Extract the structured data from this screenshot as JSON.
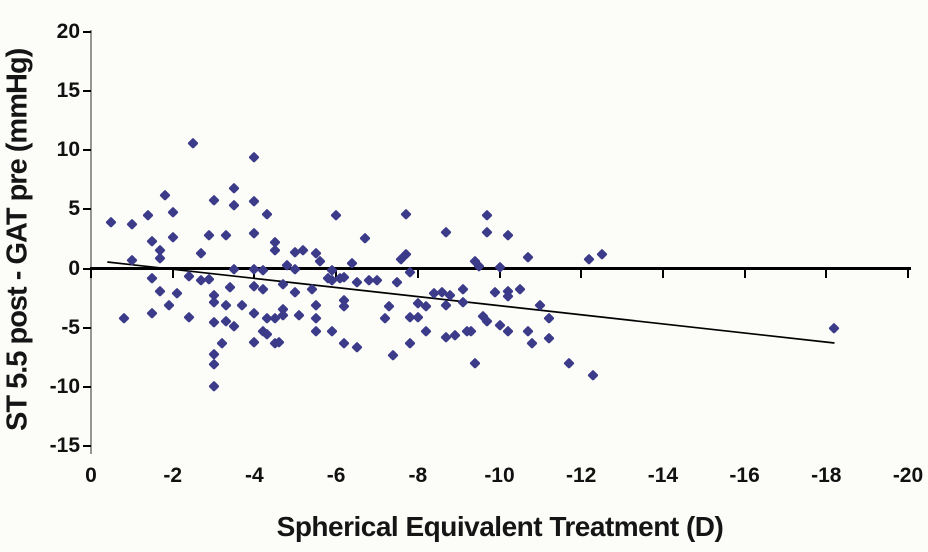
{
  "figure": {
    "background_color": "#fcfcf9",
    "marker_color": "#3b3b8a",
    "axis_line_color": "#969696",
    "zero_line_color": "#000000",
    "text_color": "#151515"
  },
  "chart_data": {
    "type": "scatter",
    "title": "",
    "xlabel": "Spherical Equivalent Treatment (D)",
    "ylabel": "ST 5.5 post - GAT pre (mmHg)",
    "x_axis_reversed": true,
    "xlim": [
      0,
      -20
    ],
    "ylim": [
      20,
      -15
    ],
    "x_ticks": [
      0,
      -2,
      -4,
      -6,
      -8,
      -10,
      -12,
      -14,
      -16,
      -18,
      -20
    ],
    "y_ticks": [
      20,
      15,
      10,
      5,
      0,
      -5,
      -10,
      -15
    ],
    "grid": false,
    "legend_position": "none",
    "marker_shape": "diamond",
    "trendline": {
      "x1": -0.4,
      "y1": 0.55,
      "x2": -18.2,
      "y2": -6.3
    },
    "points": [
      [
        -2.5,
        10.6
      ],
      [
        -4.0,
        9.4
      ],
      [
        -3.5,
        6.8
      ],
      [
        -1.8,
        6.2
      ],
      [
        -3.0,
        5.8
      ],
      [
        -4.0,
        5.7
      ],
      [
        -3.5,
        5.4
      ],
      [
        -2.0,
        4.8
      ],
      [
        -4.3,
        4.6
      ],
      [
        -1.4,
        4.5
      ],
      [
        -0.5,
        3.9
      ],
      [
        -1.0,
        3.8
      ],
      [
        -2.0,
        2.7
      ],
      [
        -2.9,
        2.8
      ],
      [
        -3.3,
        2.8
      ],
      [
        -4.0,
        3.0
      ],
      [
        -1.5,
        2.3
      ],
      [
        -4.5,
        2.2
      ],
      [
        -4.5,
        1.6
      ],
      [
        -1.7,
        1.6
      ],
      [
        -2.7,
        1.3
      ],
      [
        -1.7,
        0.9
      ],
      [
        -1.0,
        0.7
      ],
      [
        -3.5,
        0.0
      ],
      [
        -4.0,
        0.0
      ],
      [
        -4.2,
        -0.1
      ],
      [
        -1.5,
        -0.8
      ],
      [
        -2.4,
        -0.6
      ],
      [
        -2.7,
        -1.0
      ],
      [
        -2.9,
        -0.9
      ],
      [
        -3.4,
        -1.6
      ],
      [
        -4.0,
        -1.5
      ],
      [
        -4.2,
        -1.7
      ],
      [
        -1.7,
        -1.9
      ],
      [
        -2.1,
        -2.1
      ],
      [
        -3.0,
        -2.2
      ],
      [
        -3.0,
        -2.8
      ],
      [
        -3.3,
        -3.1
      ],
      [
        -3.7,
        -3.1
      ],
      [
        -1.9,
        -3.1
      ],
      [
        -1.5,
        -3.8
      ],
      [
        -0.8,
        -4.2
      ],
      [
        -2.4,
        -4.1
      ],
      [
        -4.0,
        -3.8
      ],
      [
        -4.3,
        -4.2
      ],
      [
        -4.5,
        -4.2
      ],
      [
        -4.7,
        -3.9
      ],
      [
        -3.0,
        -4.5
      ],
      [
        -3.3,
        -4.4
      ],
      [
        -3.5,
        -4.9
      ],
      [
        -4.2,
        -5.3
      ],
      [
        -3.2,
        -6.3
      ],
      [
        -4.0,
        -6.2
      ],
      [
        -4.5,
        -6.3
      ],
      [
        -4.6,
        -6.2
      ],
      [
        -3.0,
        -7.2
      ],
      [
        -3.0,
        -8.1
      ],
      [
        -3.0,
        -9.9
      ],
      [
        -4.3,
        -5.5
      ],
      [
        -6.0,
        4.5
      ],
      [
        -7.7,
        4.6
      ],
      [
        -6.7,
        2.6
      ],
      [
        -8.7,
        3.1
      ],
      [
        -5.0,
        1.4
      ],
      [
        -5.2,
        1.6
      ],
      [
        -5.5,
        1.3
      ],
      [
        -5.6,
        0.6
      ],
      [
        -4.8,
        0.3
      ],
      [
        -6.4,
        0.5
      ],
      [
        -7.6,
        0.8
      ],
      [
        -7.7,
        1.2
      ],
      [
        -9.4,
        0.6
      ],
      [
        -5.0,
        0.0
      ],
      [
        -5.9,
        -0.1
      ],
      [
        -7.8,
        -0.3
      ],
      [
        -5.8,
        -0.8
      ],
      [
        -5.9,
        -1.0
      ],
      [
        -6.1,
        -0.8
      ],
      [
        -6.2,
        -0.7
      ],
      [
        -6.5,
        -1.1
      ],
      [
        -6.8,
        -1.0
      ],
      [
        -7.0,
        -1.0
      ],
      [
        -7.5,
        -1.1
      ],
      [
        -4.7,
        -1.3
      ],
      [
        -5.0,
        -2.0
      ],
      [
        -5.4,
        -1.7
      ],
      [
        -8.4,
        -2.1
      ],
      [
        -8.6,
        -2.0
      ],
      [
        -8.8,
        -2.2
      ],
      [
        -9.1,
        -1.7
      ],
      [
        -6.2,
        -2.7
      ],
      [
        -6.2,
        -3.2
      ],
      [
        -5.5,
        -3.1
      ],
      [
        -7.3,
        -3.2
      ],
      [
        -8.0,
        -2.9
      ],
      [
        -8.2,
        -3.2
      ],
      [
        -8.7,
        -3.1
      ],
      [
        -9.1,
        -2.8
      ],
      [
        -4.7,
        -3.4
      ],
      [
        -5.1,
        -3.9
      ],
      [
        -5.5,
        -4.2
      ],
      [
        -7.2,
        -4.2
      ],
      [
        -7.8,
        -4.1
      ],
      [
        -8.0,
        -4.1
      ],
      [
        -5.5,
        -5.3
      ],
      [
        -5.9,
        -5.3
      ],
      [
        -8.2,
        -5.3
      ],
      [
        -8.7,
        -5.8
      ],
      [
        -8.9,
        -5.6
      ],
      [
        -9.2,
        -5.3
      ],
      [
        -6.2,
        -6.3
      ],
      [
        -6.5,
        -6.6
      ],
      [
        -7.8,
        -6.3
      ],
      [
        -7.4,
        -7.3
      ],
      [
        -9.4,
        -8.0
      ],
      [
        -9.7,
        4.5
      ],
      [
        -9.7,
        3.1
      ],
      [
        -10.2,
        2.8
      ],
      [
        -10.7,
        1.0
      ],
      [
        -9.5,
        0.2
      ],
      [
        -10.0,
        0.1
      ],
      [
        -12.2,
        0.8
      ],
      [
        -12.5,
        1.2
      ],
      [
        -9.9,
        -2.0
      ],
      [
        -10.2,
        -1.9
      ],
      [
        -10.2,
        -2.3
      ],
      [
        -10.5,
        -1.7
      ],
      [
        -11.0,
        -3.1
      ],
      [
        -9.6,
        -4.0
      ],
      [
        -9.7,
        -4.4
      ],
      [
        -10.0,
        -4.8
      ],
      [
        -10.2,
        -5.3
      ],
      [
        -11.2,
        -4.2
      ],
      [
        -10.7,
        -5.3
      ],
      [
        -10.8,
        -6.3
      ],
      [
        -11.2,
        -5.9
      ],
      [
        -9.3,
        -5.3
      ],
      [
        -11.7,
        -8.0
      ],
      [
        -12.3,
        -9.0
      ],
      [
        -18.2,
        -5.0
      ]
    ]
  }
}
